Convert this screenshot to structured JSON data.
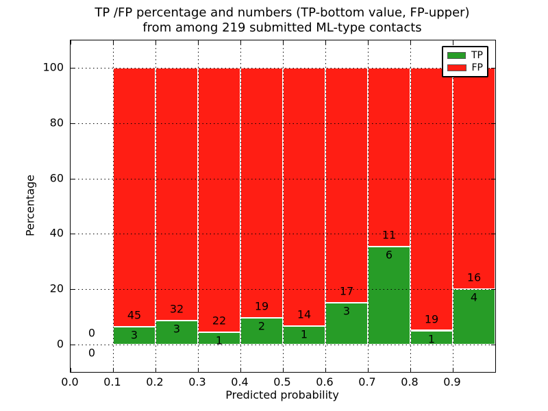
{
  "title": {
    "line1": "TP /FP percentage and numbers (TP-bottom value, FP-upper)",
    "line2": "from among 219 submitted ML-type contacts"
  },
  "axes": {
    "xlabel": "Predicted probability",
    "ylabel": "Percentage",
    "x_ticks": [
      {
        "label": "0.0",
        "value": 0.0
      },
      {
        "label": "0.1",
        "value": 0.1
      },
      {
        "label": "0.2",
        "value": 0.2
      },
      {
        "label": "0.3",
        "value": 0.3
      },
      {
        "label": "0.4",
        "value": 0.4
      },
      {
        "label": "0.5",
        "value": 0.5
      },
      {
        "label": "0.6",
        "value": 0.6
      },
      {
        "label": "0.7",
        "value": 0.7
      },
      {
        "label": "0.8",
        "value": 0.8
      },
      {
        "label": "0.9",
        "value": 0.9
      }
    ],
    "y_ticks": [
      {
        "label": "0",
        "value": 0
      },
      {
        "label": "20",
        "value": 20
      },
      {
        "label": "40",
        "value": 40
      },
      {
        "label": "60",
        "value": 60
      },
      {
        "label": "80",
        "value": 80
      },
      {
        "label": "100",
        "value": 100
      }
    ],
    "xlim": [
      0.0,
      1.0
    ],
    "ylim": [
      -10,
      110
    ],
    "grid": "dotted"
  },
  "legend": {
    "position": "upper right",
    "entries": [
      {
        "label": "TP",
        "color": "#279c27"
      },
      {
        "label": "FP",
        "color": "#ff1e14"
      }
    ]
  },
  "colors": {
    "tp": "#279c27",
    "fp": "#ff1e14",
    "background": "#ffffff",
    "text": "#000000",
    "bar_edge": "#ffffff"
  },
  "chart_data": {
    "type": "bar",
    "stacked": true,
    "normalized_to": 100,
    "total_contacts": 219,
    "title": "TP /FP percentage and numbers (TP-bottom value, FP-upper) from among 219 submitted ML-type contacts",
    "xlabel": "Predicted probability",
    "ylabel": "Percentage",
    "xlim": [
      0.0,
      1.0
    ],
    "ylim": [
      -10,
      110
    ],
    "bin_width": 0.1,
    "series_names": [
      "TP",
      "FP"
    ],
    "bins": [
      {
        "x_start": 0.0,
        "x_end": 0.1,
        "tp_count": 0,
        "fp_count": 0,
        "tp_pct": 0.0,
        "fp_pct": 0.0
      },
      {
        "x_start": 0.1,
        "x_end": 0.2,
        "tp_count": 3,
        "fp_count": 45,
        "tp_pct": 6.25,
        "fp_pct": 93.75
      },
      {
        "x_start": 0.2,
        "x_end": 0.3,
        "tp_count": 3,
        "fp_count": 32,
        "tp_pct": 8.57,
        "fp_pct": 91.43
      },
      {
        "x_start": 0.3,
        "x_end": 0.4,
        "tp_count": 1,
        "fp_count": 22,
        "tp_pct": 4.35,
        "fp_pct": 95.65
      },
      {
        "x_start": 0.4,
        "x_end": 0.5,
        "tp_count": 2,
        "fp_count": 19,
        "tp_pct": 9.52,
        "fp_pct": 90.48
      },
      {
        "x_start": 0.5,
        "x_end": 0.6,
        "tp_count": 1,
        "fp_count": 14,
        "tp_pct": 6.67,
        "fp_pct": 93.33
      },
      {
        "x_start": 0.6,
        "x_end": 0.7,
        "tp_count": 3,
        "fp_count": 17,
        "tp_pct": 15.0,
        "fp_pct": 85.0
      },
      {
        "x_start": 0.7,
        "x_end": 0.8,
        "tp_count": 6,
        "fp_count": 11,
        "tp_pct": 35.29,
        "fp_pct": 64.71
      },
      {
        "x_start": 0.8,
        "x_end": 0.9,
        "tp_count": 1,
        "fp_count": 19,
        "tp_pct": 5.0,
        "fp_pct": 95.0
      },
      {
        "x_start": 0.9,
        "x_end": 1.0,
        "tp_count": 4,
        "fp_count": 16,
        "tp_pct": 20.0,
        "fp_pct": 80.0
      }
    ]
  }
}
